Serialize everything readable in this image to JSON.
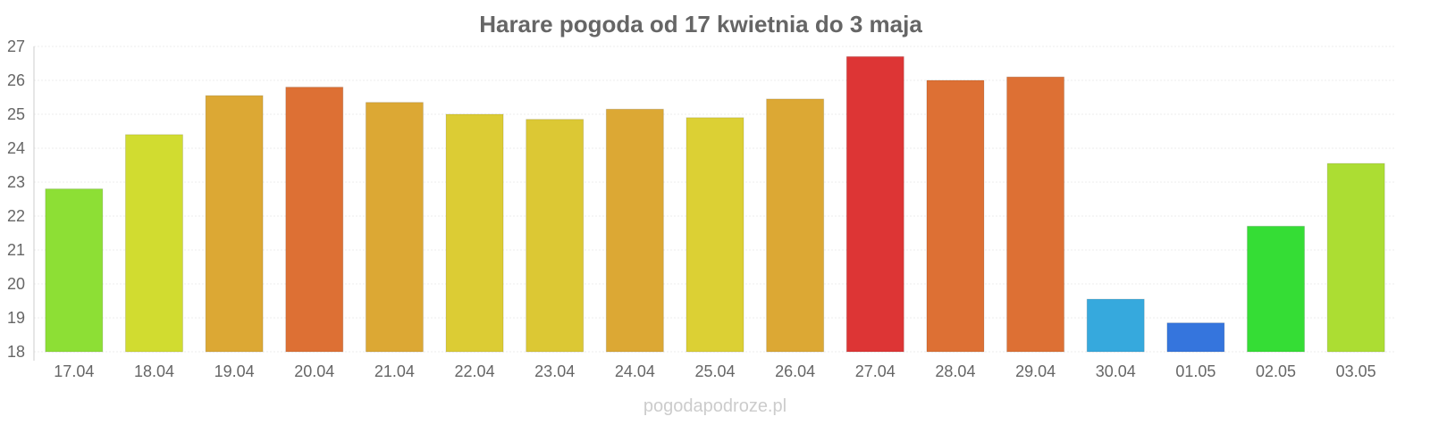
{
  "chart_data": {
    "type": "bar",
    "title": "Harare pogoda od 17 kwietnia do 3 maja",
    "xlabel": "",
    "ylabel": "",
    "ylim": [
      18,
      27
    ],
    "yticks": [
      18,
      19,
      20,
      21,
      22,
      23,
      24,
      25,
      26,
      27
    ],
    "grid": true,
    "categories": [
      "17.04",
      "18.04",
      "19.04",
      "20.04",
      "21.04",
      "22.04",
      "23.04",
      "24.04",
      "25.04",
      "26.04",
      "27.04",
      "28.04",
      "29.04",
      "30.04",
      "01.05",
      "02.05",
      "03.05"
    ],
    "values": [
      22.8,
      24.4,
      25.55,
      25.8,
      25.35,
      25.0,
      24.85,
      25.15,
      24.9,
      25.45,
      26.7,
      26.0,
      26.1,
      19.55,
      18.85,
      21.7,
      23.55
    ],
    "colors": [
      "#8ddf35",
      "#d1dc30",
      "#dca834",
      "#dd7034",
      "#dca834",
      "#dccc34",
      "#dcc834",
      "#dca834",
      "#dcd034",
      "#dca834",
      "#dd3535",
      "#dd7034",
      "#dd7034",
      "#36a9dd",
      "#3575dd",
      "#35dd35",
      "#acdd33"
    ],
    "watermark": "pogodapodroze.pl"
  }
}
